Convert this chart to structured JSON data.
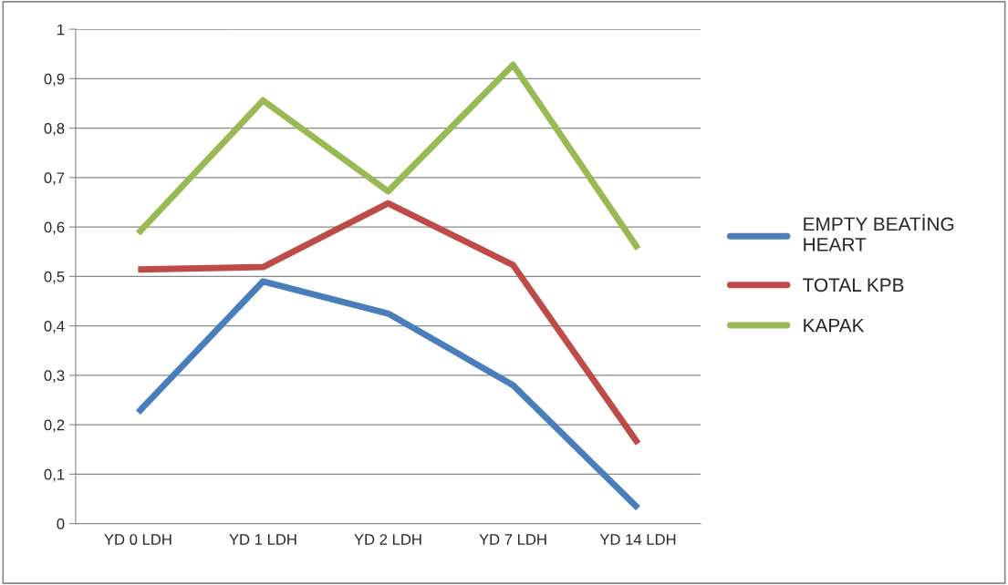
{
  "chart_data": {
    "type": "line",
    "categories": [
      "YD 0 LDH",
      "YD 1 LDH",
      "YD 2 LDH",
      "YD 7 LDH",
      "YD 14 LDH"
    ],
    "series": [
      {
        "name": "EMPTY BEATİNG\nHEART",
        "color": "#4a7ebb",
        "values": [
          0.225,
          0.49,
          0.425,
          0.28,
          0.031
        ]
      },
      {
        "name": "TOTAL KPB",
        "color": "#be4b48",
        "values": [
          0.514,
          0.519,
          0.648,
          0.523,
          0.162
        ]
      },
      {
        "name": "KAPAK",
        "color": "#98b954",
        "values": [
          0.587,
          0.856,
          0.672,
          0.928,
          0.556
        ]
      }
    ],
    "ylim": [
      0,
      1
    ],
    "yticks": [
      {
        "value": 0,
        "label": "0"
      },
      {
        "value": 0.1,
        "label": "0,1"
      },
      {
        "value": 0.2,
        "label": "0,2"
      },
      {
        "value": 0.3,
        "label": "0,3"
      },
      {
        "value": 0.4,
        "label": "0,4"
      },
      {
        "value": 0.5,
        "label": "0,5"
      },
      {
        "value": 0.6,
        "label": "0,6"
      },
      {
        "value": 0.7,
        "label": "0,7"
      },
      {
        "value": 0.8,
        "label": "0,8"
      },
      {
        "value": 0.9,
        "label": "0,9"
      },
      {
        "value": 1,
        "label": "1"
      }
    ],
    "grid": "y",
    "legend": "right",
    "marker": "none",
    "line_style": "solid"
  }
}
